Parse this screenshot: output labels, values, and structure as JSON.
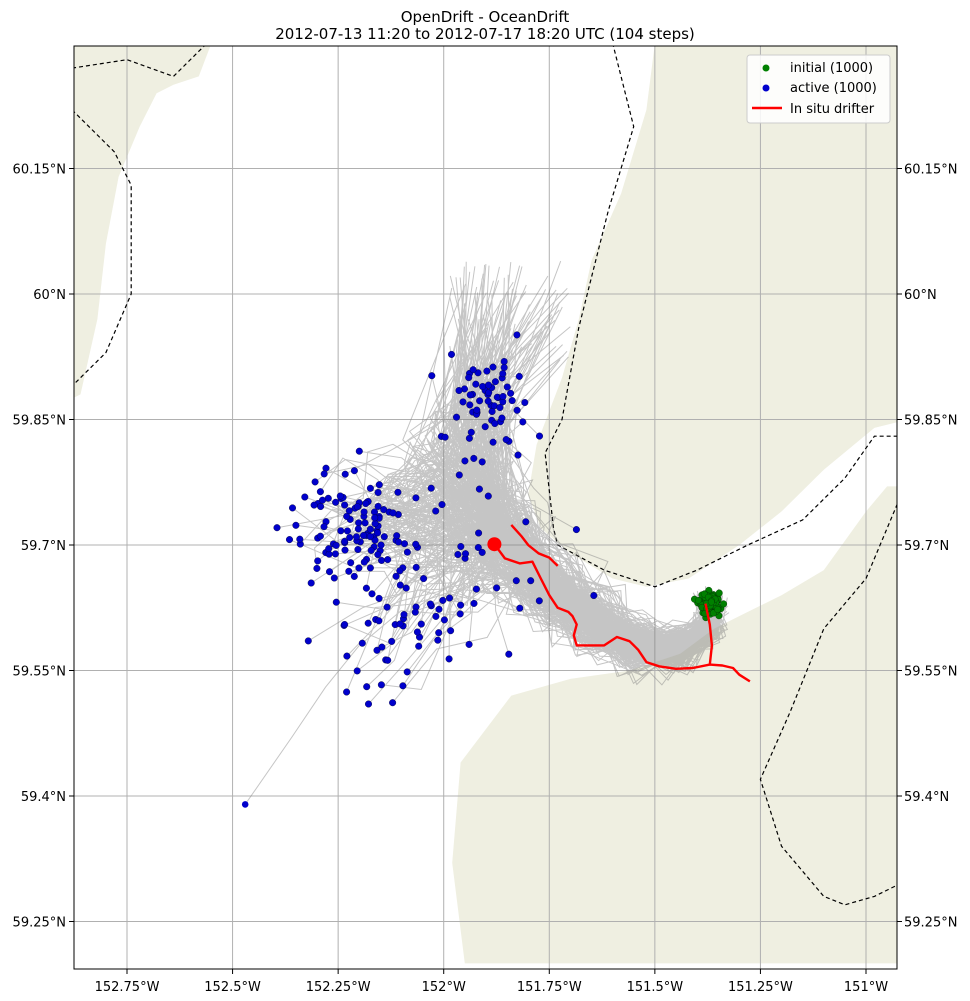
{
  "title_line1": "OpenDrift - OceanDrift",
  "title_line2": "2012-07-13 11:20 to 2012-07-17 18:20 UTC (104 steps)",
  "colors": {
    "land": "#efefe1",
    "trajectory": "#808080",
    "initial": "#008000",
    "active": "#0000cc",
    "drifter": "#ff0000",
    "grid": "#b0b0b0",
    "border": "#000000"
  },
  "chart_data": {
    "type": "scatter",
    "xlim": [
      -152.87,
      -150.91
    ],
    "ylim": [
      59.2,
      60.3
    ],
    "x_ticks": [
      {
        "value": -152.75,
        "label": "152.75°W"
      },
      {
        "value": -152.5,
        "label": "152.5°W"
      },
      {
        "value": -152.25,
        "label": "152.25°W"
      },
      {
        "value": -152.0,
        "label": "152°W"
      },
      {
        "value": -151.75,
        "label": "151.75°W"
      },
      {
        "value": -151.5,
        "label": "151.5°W"
      },
      {
        "value": -151.25,
        "label": "151.25°W"
      },
      {
        "value": -151.0,
        "label": "151°W"
      }
    ],
    "y_ticks": [
      {
        "value": 60.15,
        "label": "60.15°N"
      },
      {
        "value": 60.0,
        "label": "60°N"
      },
      {
        "value": 59.85,
        "label": "59.85°N"
      },
      {
        "value": 59.7,
        "label": "59.7°N"
      },
      {
        "value": 59.55,
        "label": "59.55°N"
      },
      {
        "value": 59.4,
        "label": "59.4°N"
      },
      {
        "value": 59.25,
        "label": "59.25°N"
      }
    ],
    "grid": true,
    "legend_position": "top-right",
    "legend": [
      {
        "label": "initial (1000)",
        "kind": "dot",
        "color": "#008000"
      },
      {
        "label": "active (1000)",
        "kind": "dot",
        "color": "#0000cc"
      },
      {
        "label": "In situ drifter",
        "kind": "line",
        "color": "#ff0000"
      }
    ],
    "initial_center": [
      -151.37,
      59.63
    ],
    "initial_count": 1000,
    "active_count": 1000,
    "drifter_track": [
      [
        -151.88,
        59.701
      ],
      [
        -151.855,
        59.684
      ],
      [
        -151.82,
        59.678
      ],
      [
        -151.79,
        59.68
      ],
      [
        -151.77,
        59.66
      ],
      [
        -151.75,
        59.64
      ],
      [
        -151.73,
        59.625
      ],
      [
        -151.705,
        59.62
      ],
      [
        -151.695,
        59.615
      ],
      [
        -151.685,
        59.605
      ],
      [
        -151.692,
        59.592
      ],
      [
        -151.685,
        59.58
      ],
      [
        -151.66,
        59.58
      ],
      [
        -151.62,
        59.58
      ],
      [
        -151.59,
        59.59
      ],
      [
        -151.56,
        59.585
      ],
      [
        -151.54,
        59.575
      ],
      [
        -151.52,
        59.56
      ],
      [
        -151.49,
        59.555
      ],
      [
        -151.45,
        59.552
      ],
      [
        -151.41,
        59.553
      ],
      [
        -151.37,
        59.557
      ],
      [
        -151.34,
        59.556
      ],
      [
        -151.315,
        59.553
      ],
      [
        -151.3,
        59.545
      ],
      [
        -151.275,
        59.537
      ]
    ],
    "drifter_branch": [
      [
        -151.37,
        59.557
      ],
      [
        -151.365,
        59.58
      ],
      [
        -151.37,
        59.605
      ],
      [
        -151.38,
        59.63
      ]
    ],
    "drifter_start_marker": [
      -151.88,
      59.701
    ],
    "drifter_short_track": [
      [
        -151.84,
        59.724
      ],
      [
        -151.815,
        59.71
      ],
      [
        -151.8,
        59.7
      ],
      [
        -151.775,
        59.69
      ],
      [
        -151.75,
        59.685
      ],
      [
        -151.73,
        59.675
      ]
    ]
  }
}
